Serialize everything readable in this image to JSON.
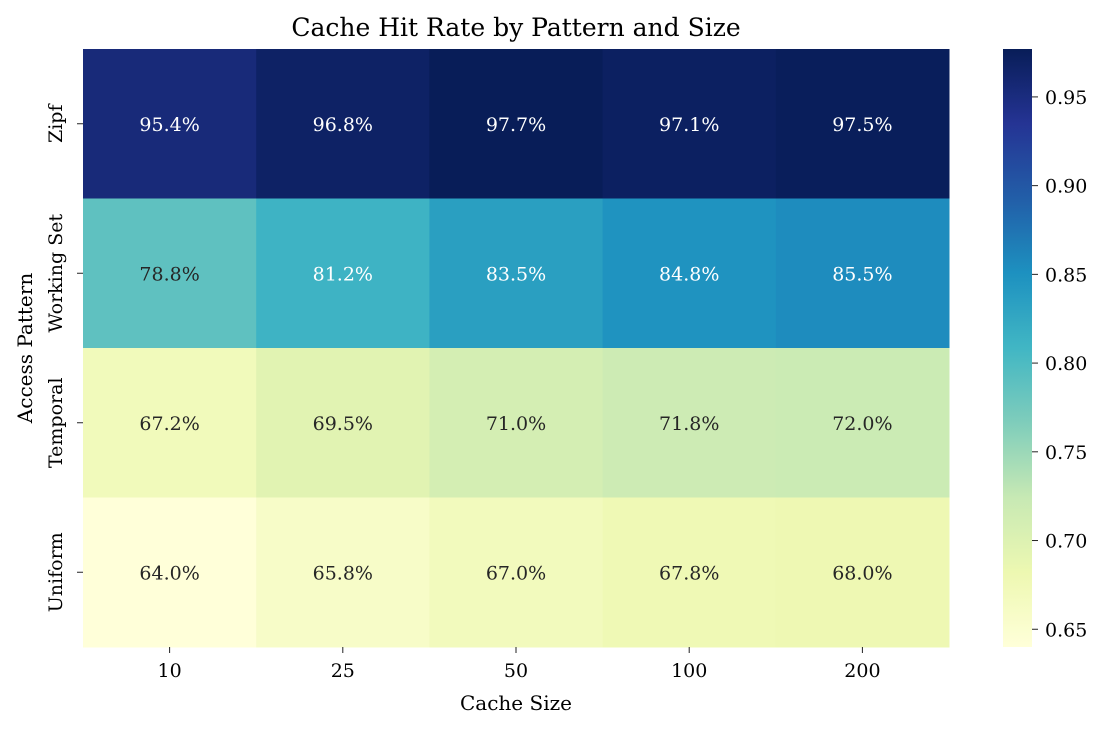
{
  "chart_data": {
    "type": "heatmap",
    "title": "Cache Hit Rate by Pattern and Size",
    "xlabel": "Cache Size",
    "ylabel": "Access Pattern",
    "x_categories": [
      "10",
      "25",
      "50",
      "100",
      "200"
    ],
    "y_categories": [
      "Zipf",
      "Working Set",
      "Temporal",
      "Uniform"
    ],
    "values": [
      [
        0.954,
        0.968,
        0.977,
        0.971,
        0.975
      ],
      [
        0.788,
        0.812,
        0.835,
        0.848,
        0.855
      ],
      [
        0.672,
        0.695,
        0.71,
        0.718,
        0.72
      ],
      [
        0.64,
        0.658,
        0.67,
        0.678,
        0.68
      ]
    ],
    "annotations": [
      [
        "95.4%",
        "96.8%",
        "97.7%",
        "97.1%",
        "97.5%"
      ],
      [
        "78.8%",
        "81.2%",
        "83.5%",
        "84.8%",
        "85.5%"
      ],
      [
        "67.2%",
        "69.5%",
        "71.0%",
        "71.8%",
        "72.0%"
      ],
      [
        "64.0%",
        "65.8%",
        "67.0%",
        "67.8%",
        "68.0%"
      ]
    ],
    "colormap": "YlGnBu",
    "colorbar": {
      "range": [
        0.64,
        0.977
      ],
      "ticks": [
        "0.65",
        "0.70",
        "0.75",
        "0.80",
        "0.85",
        "0.90",
        "0.95"
      ]
    }
  }
}
